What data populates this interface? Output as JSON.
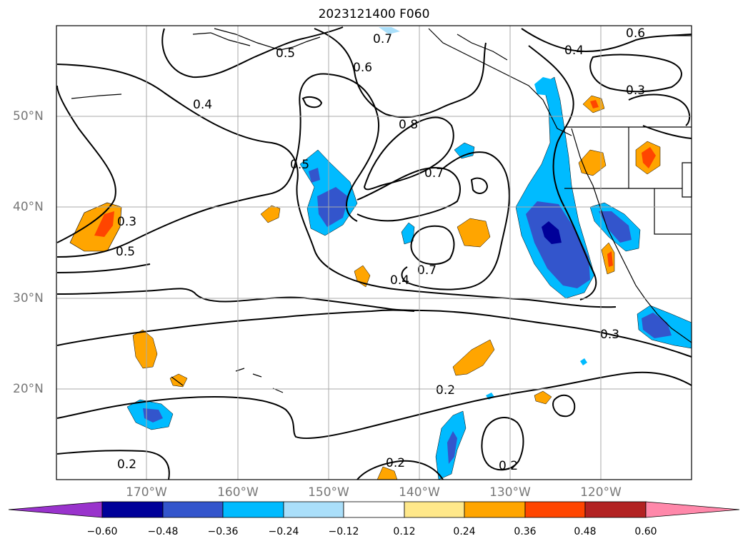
{
  "title": "2023121400 F060",
  "lat_labels": [
    "50°N",
    "40°N",
    "30°N",
    "20°N"
  ],
  "lon_labels": [
    "170°W",
    "160°W",
    "150°W",
    "140°W",
    "130°W",
    "120°W"
  ],
  "colorbar": {
    "ticks": [
      "−0.60",
      "−0.48",
      "−0.36",
      "−0.24",
      "−0.12",
      "0.12",
      "0.24",
      "0.36",
      "0.48",
      "0.60"
    ],
    "colors": [
      "#9933cc",
      "#000099",
      "#3355cc",
      "#00bbff",
      "#aadffa",
      "#ffffff",
      "#ffe88a",
      "#ffa500",
      "#ff4500",
      "#b22222",
      "#ff88aa"
    ]
  },
  "contour_labels": [
    {
      "text": "0.7"
    },
    {
      "text": "0.5"
    },
    {
      "text": "0.6"
    },
    {
      "text": "0.4"
    },
    {
      "text": "0.3"
    },
    {
      "text": "0.4"
    },
    {
      "text": "0.5"
    },
    {
      "text": "0.8"
    },
    {
      "text": "0.7"
    },
    {
      "text": "0.6"
    },
    {
      "text": "0.3"
    },
    {
      "text": "0.5"
    },
    {
      "text": "0.7"
    },
    {
      "text": "0.4"
    },
    {
      "text": "0.3"
    },
    {
      "text": "0.2"
    },
    {
      "text": "0.2"
    },
    {
      "text": "0.2"
    },
    {
      "text": "0.2"
    }
  ]
}
